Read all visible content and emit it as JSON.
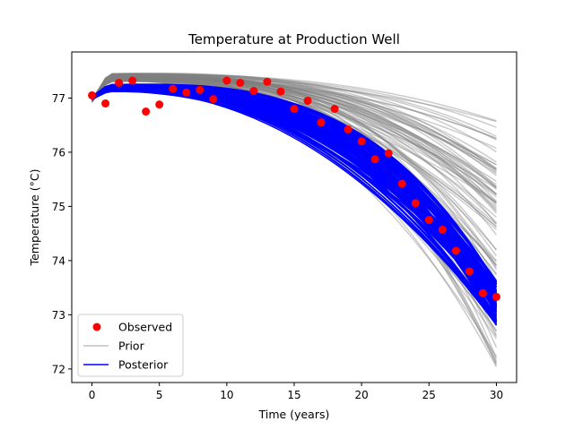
{
  "chart_data": {
    "type": "line",
    "title": "Temperature at Production Well",
    "xlabel": "Time (years)",
    "ylabel": "Temperature (°C)",
    "xlim": [
      -1.5,
      31.5
    ],
    "ylim": [
      71.75,
      77.85
    ],
    "x_ticks": [
      0,
      5,
      10,
      15,
      20,
      25,
      30
    ],
    "y_ticks": [
      72,
      73,
      74,
      75,
      76,
      77
    ],
    "grid": false,
    "legend_position": "lower-left",
    "series": [
      {
        "name": "Observed",
        "kind": "scatter",
        "color": "#ff0000",
        "x": [
          0,
          1,
          2,
          3,
          4,
          5,
          6,
          7,
          8,
          9,
          10,
          11,
          12,
          13,
          14,
          15,
          16,
          17,
          18,
          19,
          20,
          21,
          22,
          23,
          24,
          25,
          26,
          27,
          28,
          29,
          30
        ],
        "y": [
          77.05,
          76.9,
          77.28,
          77.32,
          76.75,
          76.88,
          77.17,
          77.1,
          77.15,
          76.98,
          77.32,
          77.28,
          77.13,
          77.3,
          77.12,
          76.8,
          76.95,
          76.55,
          76.8,
          76.42,
          76.2,
          75.87,
          75.98,
          75.42,
          75.06,
          74.75,
          74.57,
          74.18,
          73.8,
          73.4,
          73.33
        ]
      },
      {
        "name": "Prior",
        "kind": "ensemble",
        "color": "#a9a9a9",
        "x_range": [
          0,
          30
        ],
        "start_value": 76.95,
        "plateau_range": [
          77.3,
          77.45
        ],
        "final_range": [
          72.0,
          76.6
        ]
      },
      {
        "name": "Posterior",
        "kind": "ensemble",
        "color": "#0000ff",
        "x_range": [
          0,
          30
        ],
        "start_value": 77.0,
        "plateau_range": [
          77.12,
          77.25
        ],
        "final_range": [
          72.8,
          73.65
        ]
      }
    ]
  }
}
